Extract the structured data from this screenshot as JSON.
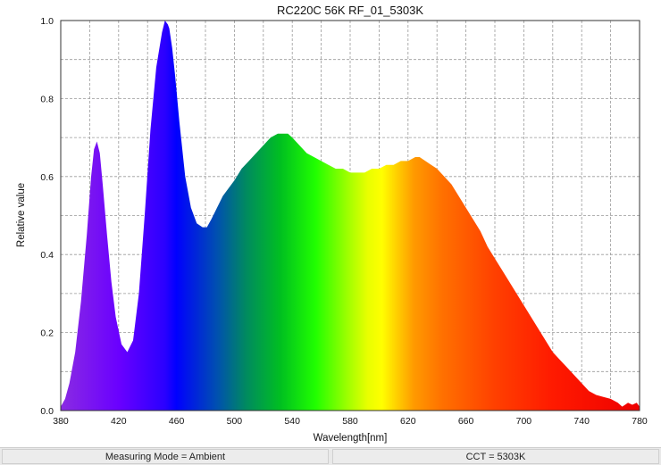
{
  "chart_data": {
    "type": "area",
    "title": "RC220C 56K RF_01_5303K",
    "xlabel": "Wavelength[nm]",
    "ylabel": "Relative value",
    "xlim": [
      380,
      780
    ],
    "ylim": [
      0,
      1.0
    ],
    "x_ticks": [
      380,
      420,
      460,
      500,
      540,
      580,
      620,
      660,
      700,
      740,
      780
    ],
    "y_ticks": [
      "0.0",
      "0.2",
      "0.4",
      "0.6",
      "0.8",
      "1.0"
    ],
    "grid": true,
    "fill": "visible-spectrum-gradient",
    "x": [
      380,
      383,
      386,
      390,
      394,
      398,
      401,
      403,
      405,
      407,
      409,
      412,
      415,
      418,
      422,
      426,
      430,
      434,
      438,
      442,
      446,
      450,
      452,
      454,
      455,
      457,
      459,
      462,
      466,
      470,
      474,
      478,
      481,
      484,
      488,
      492,
      496,
      500,
      505,
      510,
      515,
      520,
      525,
      530,
      535,
      537,
      540,
      545,
      550,
      555,
      560,
      565,
      570,
      575,
      580,
      585,
      590,
      595,
      600,
      605,
      610,
      615,
      620,
      625,
      628,
      632,
      636,
      640,
      645,
      650,
      655,
      660,
      665,
      670,
      675,
      680,
      685,
      690,
      695,
      700,
      705,
      710,
      715,
      720,
      725,
      730,
      735,
      740,
      745,
      750,
      755,
      760,
      765,
      768,
      770,
      772,
      775,
      778,
      780
    ],
    "values": [
      0.01,
      0.03,
      0.07,
      0.15,
      0.28,
      0.45,
      0.6,
      0.67,
      0.69,
      0.66,
      0.58,
      0.45,
      0.33,
      0.24,
      0.17,
      0.15,
      0.18,
      0.3,
      0.5,
      0.72,
      0.88,
      0.97,
      1.0,
      0.99,
      0.98,
      0.93,
      0.86,
      0.74,
      0.6,
      0.52,
      0.48,
      0.47,
      0.47,
      0.49,
      0.52,
      0.55,
      0.57,
      0.59,
      0.62,
      0.64,
      0.66,
      0.68,
      0.7,
      0.71,
      0.71,
      0.71,
      0.7,
      0.68,
      0.66,
      0.65,
      0.64,
      0.63,
      0.62,
      0.62,
      0.61,
      0.61,
      0.61,
      0.62,
      0.62,
      0.63,
      0.63,
      0.64,
      0.64,
      0.65,
      0.65,
      0.64,
      0.63,
      0.62,
      0.6,
      0.58,
      0.55,
      0.52,
      0.49,
      0.46,
      0.42,
      0.39,
      0.36,
      0.33,
      0.3,
      0.27,
      0.24,
      0.21,
      0.18,
      0.15,
      0.13,
      0.11,
      0.09,
      0.07,
      0.05,
      0.04,
      0.035,
      0.03,
      0.02,
      0.01,
      0.015,
      0.02,
      0.015,
      0.02,
      0.01
    ]
  },
  "status": {
    "measuring_mode": "Measuring Mode = Ambient",
    "cct": "CCT = 5303K"
  }
}
